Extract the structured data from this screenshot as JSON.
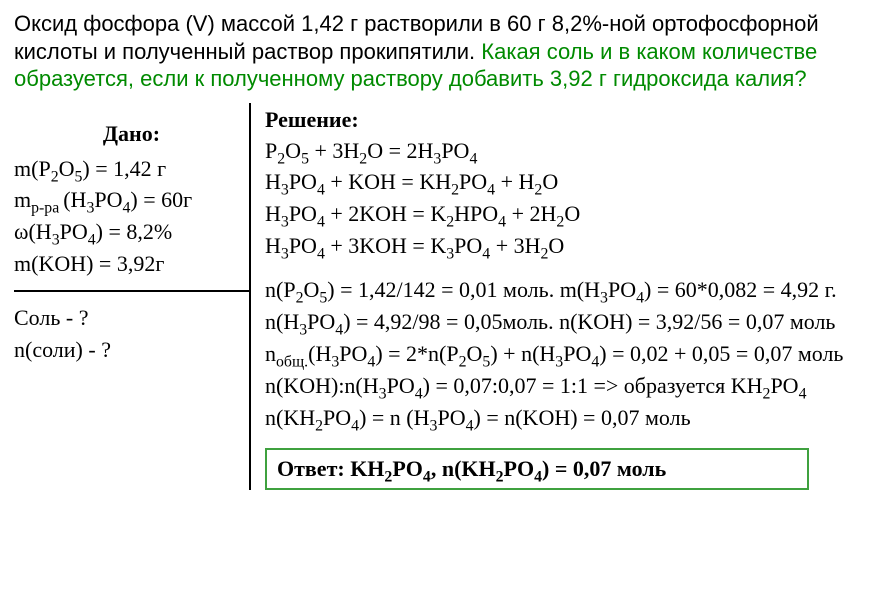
{
  "problem": {
    "statement_plain": "Оксид фосфора (V) массой 1,42 г растворили в 60 г 8,2%-ной ортофосфорной кислоты и полученный раствор прокипятили. ",
    "statement_question": "Какая соль и в каком количестве образуется, если к полученному раствору добавить 3,92 г гидроксида калия?",
    "colors": {
      "text": "#000000",
      "question": "#008a00",
      "answer_border": "#3fa13f"
    },
    "font_sizes": {
      "problem": 22,
      "body": 22
    }
  },
  "given": {
    "title": "Дано:",
    "m_P2O5_label": "m(P",
    "m_P2O5_sub1": "2",
    "m_P2O5_mid": "O",
    "m_P2O5_sub2": "5",
    "m_P2O5_end": ") = 1,42 г",
    "m_sol_label": "m",
    "m_sol_sub": "р-ра ",
    "m_sol_mid": "(H",
    "m_sol_sub2": "3",
    "m_sol_mid2": "PO",
    "m_sol_sub3": "4",
    "m_sol_end": ") = 60г",
    "omega_label": "ω(H",
    "omega_sub1": "3",
    "omega_mid": "PO",
    "omega_sub2": "4",
    "omega_end": ") = 8,2%",
    "m_KOH": "m(KOH) = 3,92г"
  },
  "find": {
    "line1": "Соль - ?",
    "line2": "n(соли) - ?"
  },
  "solution": {
    "title": "Решение:",
    "eq1_a": "P",
    "eq1_b": "2",
    "eq1_c": "O",
    "eq1_d": "5",
    "eq1_e": " + 3H",
    "eq1_f": "2",
    "eq1_g": "O = 2H",
    "eq1_h": "3",
    "eq1_i": "PO",
    "eq1_j": "4",
    "eq2_a": "H",
    "eq2_b": "3",
    "eq2_c": "PO",
    "eq2_d": "4",
    "eq2_e": " + KOH = KH",
    "eq2_f": "2",
    "eq2_g": "PO",
    "eq2_h": "4",
    "eq2_i": " + H",
    "eq2_j": "2",
    "eq2_k": "O",
    "eq3_a": "H",
    "eq3_b": "3",
    "eq3_c": "PO",
    "eq3_d": "4",
    "eq3_e": " + 2KOH = K",
    "eq3_f": "2",
    "eq3_g": "HPO",
    "eq3_h": "4",
    "eq3_i": " + 2H",
    "eq3_j": "2",
    "eq3_k": "O",
    "eq4_a": "H",
    "eq4_b": "3",
    "eq4_c": "PO",
    "eq4_d": "4",
    "eq4_e": " + 3KOH = K",
    "eq4_f": "3",
    "eq4_g": "PO",
    "eq4_h": "4",
    "eq4_i": " + 3H",
    "eq4_j": "2",
    "eq4_k": "O",
    "c1_a": "n(P",
    "c1_b": "2",
    "c1_c": "O",
    "c1_d": "5",
    "c1_e": ") = 1,42/142 = 0,01 моль. m(H",
    "c1_f": "3",
    "c1_g": "PO",
    "c1_h": "4",
    "c1_i": ") = 60*0,082 = 4,92 г.",
    "c2_a": "n(H",
    "c2_b": "3",
    "c2_c": "PO",
    "c2_d": "4",
    "c2_e": ") = 4,92/98 = 0,05моль. n(KOH) = 3,92/56 = 0,07 моль",
    "c3_a": "n",
    "c3_b": "общ.",
    "c3_c": "(H",
    "c3_d": "3",
    "c3_e": "PO",
    "c3_f": "4",
    "c3_g": ") = 2*n(P",
    "c3_h": "2",
    "c3_i": "O",
    "c3_j": "5",
    "c3_k": ") + n(H",
    "c3_l": "3",
    "c3_m": "PO",
    "c3_n": "4",
    "c3_o": ") = 0,02 + 0,05 = 0,07 моль",
    "c4_a": "n(KOH):n(H",
    "c4_b": "3",
    "c4_c": "PO",
    "c4_d": "4",
    "c4_e": ") = 0,07:0,07 = 1:1 => образуется KH",
    "c4_f": "2",
    "c4_g": "PO",
    "c4_h": "4",
    "c5_a": "n(KH",
    "c5_b": "2",
    "c5_c": "PO",
    "c5_d": "4",
    "c5_e": ") = n (H",
    "c5_f": "3",
    "c5_g": "PO",
    "c5_h": "4",
    "c5_i": ") = n(KOH) = 0,07 моль"
  },
  "answer": {
    "a": "Ответ: KH",
    "b": "2",
    "c": "PO",
    "d": "4",
    "e": ", n(KH",
    "f": "2",
    "g": "PO",
    "h": "4",
    "i": ") = 0,07 моль"
  }
}
